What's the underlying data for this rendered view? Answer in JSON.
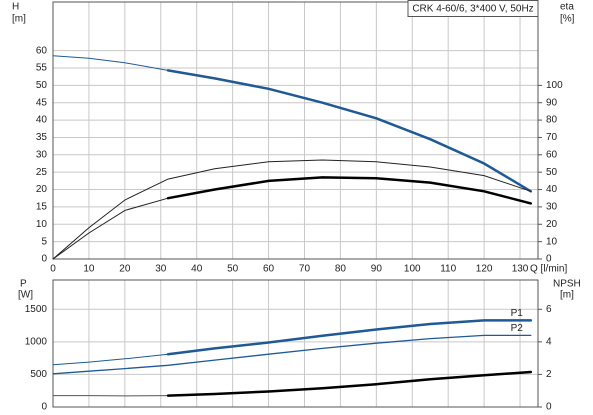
{
  "chart_data": [
    {
      "type": "line",
      "title": "CRK 4-60/6, 3*400 V, 50Hz",
      "y_label": "H",
      "y_unit": "[m]",
      "y2_label": "eta",
      "y2_unit": "[%]",
      "x_label": "Q [l/min]",
      "xlim": [
        0,
        135
      ],
      "xticks": [
        0,
        10,
        20,
        30,
        40,
        50,
        60,
        70,
        80,
        90,
        100,
        110,
        120,
        130
      ],
      "ylim": [
        0,
        74
      ],
      "yticks": [
        0,
        5,
        10,
        15,
        20,
        25,
        30,
        35,
        40,
        45,
        50,
        55,
        60
      ],
      "y2lim": [
        0,
        148
      ],
      "y2ticks": [
        0,
        10,
        20,
        30,
        40,
        50,
        60,
        70,
        80,
        90,
        100
      ],
      "grid": true,
      "series": [
        {
          "axis": "y",
          "color": "#1f5a96",
          "width": 1,
          "x": [
            0,
            10,
            20,
            32
          ],
          "values": [
            58.5,
            57.8,
            56.5,
            54.3
          ]
        },
        {
          "axis": "y",
          "color": "#1f5a96",
          "width": 2.5,
          "x": [
            32,
            45,
            60,
            75,
            90,
            105,
            120,
            133
          ],
          "values": [
            54.3,
            52,
            49,
            45,
            40.5,
            34.5,
            27.5,
            19.5
          ]
        },
        {
          "axis": "y2",
          "color": "#222222",
          "width": 1,
          "x": [
            0,
            10,
            20,
            32,
            45,
            60,
            75,
            90,
            105,
            120,
            133
          ],
          "values": [
            0,
            18,
            34,
            46,
            52,
            56,
            57,
            56,
            53,
            48,
            39
          ]
        },
        {
          "axis": "y2",
          "color": "#222222",
          "width": 1,
          "x": [
            0,
            10,
            20,
            32
          ],
          "values": [
            0,
            15,
            28,
            35
          ]
        },
        {
          "axis": "y2",
          "color": "#000000",
          "width": 2.5,
          "x": [
            32,
            45,
            60,
            75,
            90,
            105,
            120,
            133
          ],
          "values": [
            35,
            40,
            45,
            47,
            46.5,
            44,
            39,
            32
          ]
        }
      ]
    },
    {
      "type": "line",
      "y_label": "P",
      "y_unit": "[W]",
      "y2_label": "NPSH",
      "y2_unit": "[m]",
      "xlim": [
        0,
        135
      ],
      "ylim": [
        0,
        1950
      ],
      "yticks": [
        0,
        500,
        1000,
        1500
      ],
      "y2lim": [
        0,
        7.8
      ],
      "y2ticks": [
        0,
        2,
        4,
        6
      ],
      "grid": true,
      "series": [
        {
          "axis": "y",
          "color": "#1f5a96",
          "width": 1,
          "x": [
            0,
            10,
            20,
            32
          ],
          "values": [
            650,
            690,
            740,
            810
          ]
        },
        {
          "name": "P1",
          "axis": "y",
          "color": "#1f5a96",
          "width": 2.5,
          "x": [
            32,
            45,
            60,
            75,
            90,
            105,
            120,
            133
          ],
          "values": [
            810,
            900,
            990,
            1095,
            1190,
            1275,
            1330,
            1330
          ]
        },
        {
          "name": "P2",
          "axis": "y",
          "color": "#1f5a96",
          "width": 1.3,
          "x": [
            0,
            10,
            20,
            32,
            45,
            60,
            75,
            90,
            105,
            120,
            133
          ],
          "values": [
            510,
            550,
            590,
            640,
            720,
            810,
            900,
            980,
            1050,
            1100,
            1100
          ]
        },
        {
          "axis": "y2",
          "color": "#555555",
          "width": 1,
          "x": [
            0,
            10,
            20,
            32
          ],
          "values": [
            0.7,
            0.7,
            0.68,
            0.7
          ]
        },
        {
          "axis": "y2",
          "color": "#000000",
          "width": 2.5,
          "x": [
            32,
            45,
            60,
            75,
            90,
            105,
            120,
            133
          ],
          "values": [
            0.7,
            0.8,
            0.95,
            1.15,
            1.4,
            1.7,
            1.95,
            2.15
          ]
        }
      ]
    }
  ]
}
